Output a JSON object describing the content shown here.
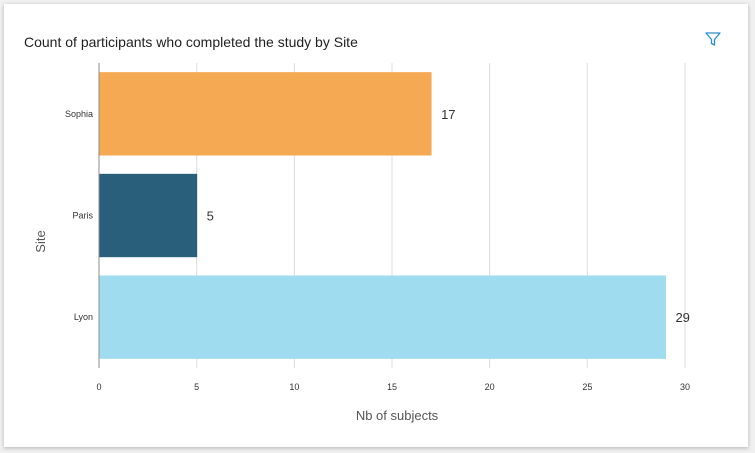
{
  "card": {
    "title": "Count of participants who completed the study by Site",
    "filter_icon": "filter-icon"
  },
  "chart_data": {
    "type": "bar",
    "orientation": "horizontal",
    "title": "Count of participants who completed the study by Site",
    "xlabel": "Nb of subjects",
    "ylabel": "Site",
    "categories": [
      "Sophia",
      "Paris",
      "Lyon"
    ],
    "values": [
      17,
      5,
      29
    ],
    "data_labels": [
      "17",
      "5",
      "29"
    ],
    "colors": [
      "#f5a953",
      "#2a5f7c",
      "#a0dcf0"
    ],
    "xlim": [
      0,
      30
    ],
    "xticks": [
      0,
      5,
      10,
      15,
      20,
      25,
      30
    ],
    "xtick_labels": [
      "0",
      "5",
      "10",
      "15",
      "20",
      "25",
      "30"
    ],
    "grid": true,
    "legend": "none"
  }
}
